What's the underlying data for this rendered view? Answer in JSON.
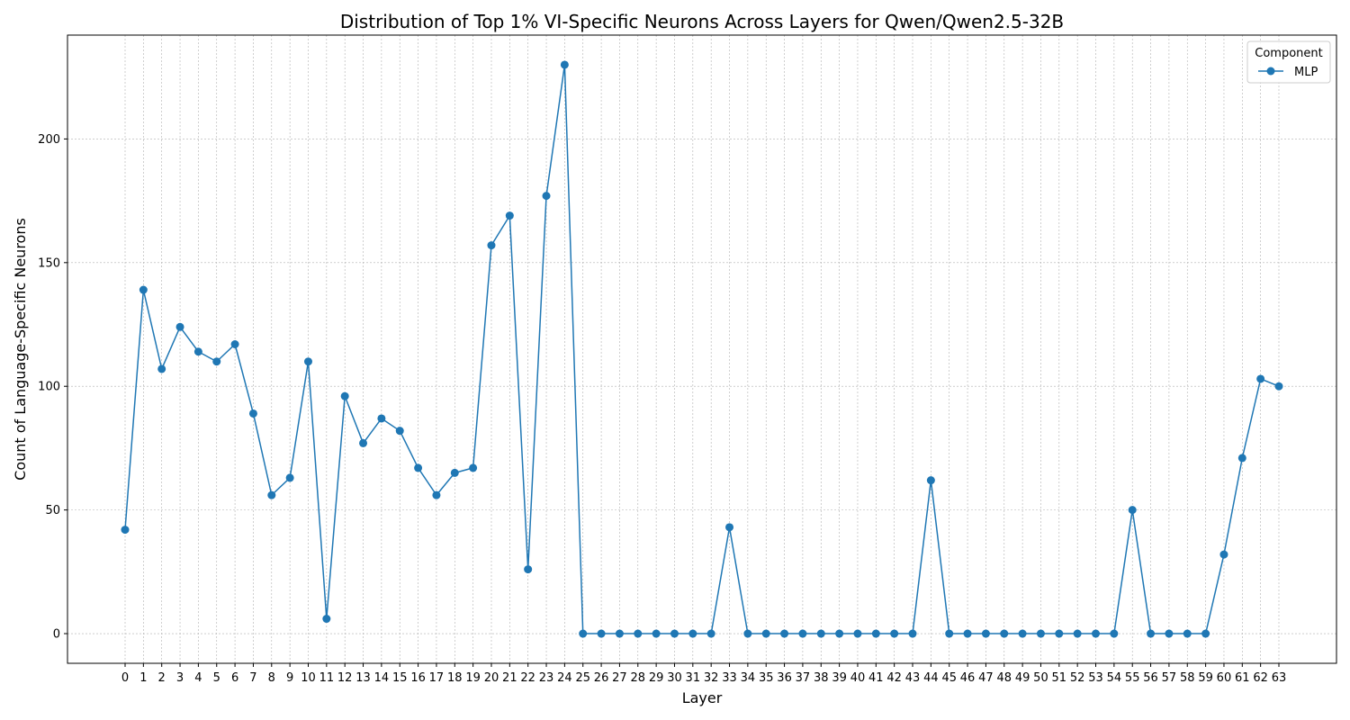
{
  "chart_data": {
    "type": "line",
    "title": "Distribution of Top 1% VI-Specific Neurons Across Layers for Qwen/Qwen2.5-32B",
    "xlabel": "Layer",
    "ylabel": "Count of Language-Specific Neurons",
    "x": [
      0,
      1,
      2,
      3,
      4,
      5,
      6,
      7,
      8,
      9,
      10,
      11,
      12,
      13,
      14,
      15,
      16,
      17,
      18,
      19,
      20,
      21,
      22,
      23,
      24,
      25,
      26,
      27,
      28,
      29,
      30,
      31,
      32,
      33,
      34,
      35,
      36,
      37,
      38,
      39,
      40,
      41,
      42,
      43,
      44,
      45,
      46,
      47,
      48,
      49,
      50,
      51,
      52,
      53,
      54,
      55,
      56,
      57,
      58,
      59,
      60,
      61,
      62,
      63
    ],
    "series": [
      {
        "name": "MLP",
        "color": "#1f77b4",
        "marker": "circle",
        "values": [
          42,
          139,
          107,
          124,
          114,
          110,
          117,
          89,
          56,
          63,
          110,
          6,
          96,
          77,
          87,
          82,
          67,
          56,
          65,
          67,
          157,
          169,
          26,
          177,
          230,
          0,
          0,
          0,
          0,
          0,
          0,
          0,
          0,
          43,
          0,
          0,
          0,
          0,
          0,
          0,
          0,
          0,
          0,
          0,
          62,
          0,
          0,
          0,
          0,
          0,
          0,
          0,
          0,
          0,
          0,
          50,
          0,
          0,
          0,
          0,
          32,
          71,
          103,
          100
        ]
      }
    ],
    "ylim": [
      -12,
      242
    ],
    "yticks": [
      0,
      50,
      100,
      150,
      200
    ],
    "grid": true,
    "legend": {
      "title": "Component",
      "placement": "top-right"
    }
  }
}
